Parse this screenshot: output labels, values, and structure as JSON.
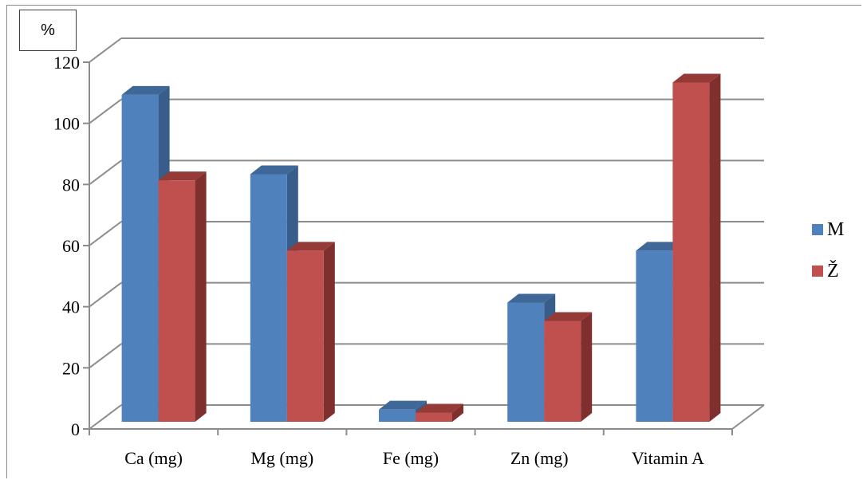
{
  "unit_label": "%",
  "chart_data": {
    "type": "bar",
    "categories": [
      "Ca (mg)",
      "Mg (mg)",
      "Fe (mg)",
      "Zn (mg)",
      "Vitamin A"
    ],
    "series": [
      {
        "name": "M",
        "values": [
          107,
          81,
          4,
          39,
          56
        ],
        "color": "#4f81bd",
        "side_color": "#385d8a",
        "top_color": "#3f6797"
      },
      {
        "name": "Ž",
        "values": [
          79,
          56,
          3,
          33,
          111
        ],
        "color": "#c0504d",
        "side_color": "#7f2f2d",
        "top_color": "#943b38"
      }
    ],
    "yticks": [
      "0",
      "20",
      "40",
      "60",
      "80",
      "100",
      "120"
    ],
    "ylim": [
      0,
      120
    ],
    "legend_position": "right",
    "grid": true
  }
}
